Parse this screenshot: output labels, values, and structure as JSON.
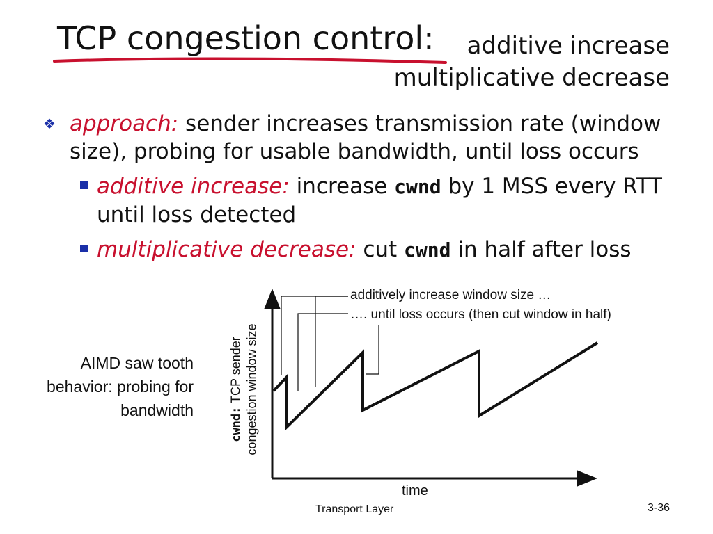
{
  "title": {
    "main": "TCP congestion control:",
    "sub_line1": "additive increase",
    "sub_line2": "multiplicative decrease"
  },
  "approach": {
    "label": "approach:",
    "text": " sender increases transmission rate (window size), probing for usable bandwidth, until loss occurs"
  },
  "additive": {
    "label": "additive increase:",
    "text_before": " increase ",
    "code": "cwnd",
    "text_after": " by 1 MSS every RTT until loss detected"
  },
  "multiplicative": {
    "label": "multiplicative decrease:",
    "text_before": " cut ",
    "code": "cwnd",
    "text_after": " in half after loss"
  },
  "figure": {
    "side_caption": "AIMD saw tooth behavior: probing for bandwidth",
    "ylabel_code": "cwnd:",
    "ylabel_text1": " TCP sender",
    "ylabel_text2": "congestion window size",
    "xlabel": "time",
    "annotation_increase": "additively increase window size …",
    "annotation_loss": "…. until loss occurs (then cut window in half)"
  },
  "footer": {
    "section": "Transport Layer",
    "page": "3-36"
  },
  "colors": {
    "accent_red": "#c8102e",
    "bullet_blue": "#1a2fa8"
  }
}
